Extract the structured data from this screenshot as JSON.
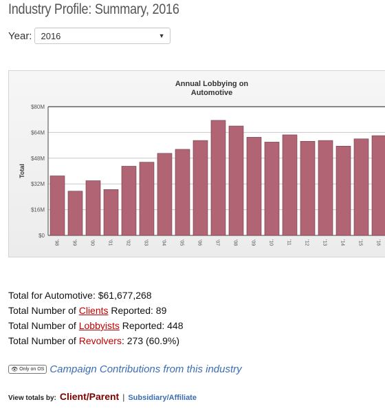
{
  "page": {
    "title": "Industry Profile: Summary, 2016"
  },
  "year_filter": {
    "label": "Year:",
    "selected": "2016"
  },
  "chart_data": {
    "type": "bar",
    "title_line1": "Annual Lobbying on",
    "title_line2": "Automotive",
    "ylabel": "Total",
    "xlabel": "",
    "ylim": [
      0,
      80
    ],
    "yticks": [
      "$0",
      "$16M",
      "$32M",
      "$48M",
      "$64M",
      "$80M"
    ],
    "ytick_values": [
      0,
      16,
      32,
      48,
      64,
      80
    ],
    "grid": true,
    "legend": "none",
    "bar_color": "#b06474",
    "categories": [
      "'98",
      "'99",
      "'00",
      "'01",
      "'02",
      "'03",
      "'04",
      "'05",
      "'06",
      "'07",
      "'08",
      "'09",
      "'10",
      "'11",
      "'12",
      "'13",
      "'14",
      "'15",
      "'16"
    ],
    "values": [
      37,
      27.5,
      34,
      28.5,
      43,
      45.5,
      51,
      53.5,
      59,
      71.5,
      68,
      61,
      58,
      62.5,
      58.5,
      59,
      55.5,
      60,
      62
    ]
  },
  "stats": {
    "total_prefix": "Total for Automotive: ",
    "total_value": "$61,677,268",
    "clients_prefix": "Total Number of ",
    "clients_link": "Clients",
    "clients_suffix": " Reported: 89",
    "lobbyists_prefix": "Total Number of ",
    "lobbyists_link": "Lobbyists",
    "lobbyists_suffix": " Reported: 448",
    "revolvers_prefix": "Total Number of ",
    "revolvers_link": "Revolvers",
    "revolvers_suffix": ": 273 (60.9%)"
  },
  "os_row": {
    "badge": "Only on OS",
    "link": "Campaign Contributions from this industry"
  },
  "view_totals": {
    "label": "View totals by:",
    "active": "Client/Parent",
    "separator": "|",
    "link": "Subsidiary/Affiliate"
  },
  "colors": {
    "accent_red": "#c00000",
    "link_blue": "#3a6db5",
    "bar": "#b06474"
  }
}
